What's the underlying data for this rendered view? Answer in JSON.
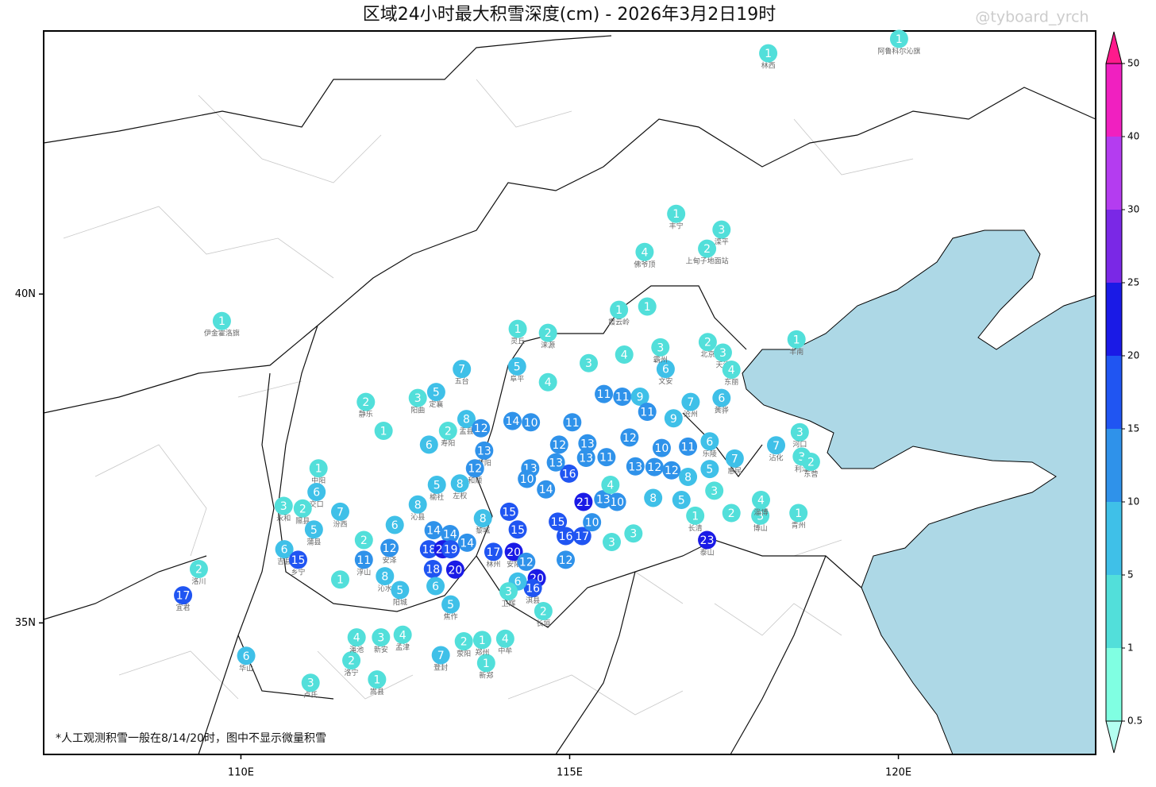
{
  "title": "区域24小时最大积雪深度(cm) - 2026年3月2日19时",
  "watermark": "@tyboard_yrch",
  "note": "*人工观测积雪一般在8/14/20时，图中不显示微量积雪",
  "map": {
    "xlim": [
      107,
      123
    ],
    "ylim": [
      33,
      44
    ],
    "xticks": [
      {
        "value": 110,
        "label": "110E"
      },
      {
        "value": 115,
        "label": "115E"
      },
      {
        "value": 120,
        "label": "120E"
      }
    ],
    "yticks": [
      {
        "value": 35,
        "label": "35N"
      },
      {
        "value": 40,
        "label": "40N"
      }
    ],
    "colorbar": {
      "levels": [
        0.5,
        1,
        5,
        10,
        15,
        20,
        25,
        30,
        40,
        50
      ],
      "colors": [
        "#b4fff0",
        "#80ffe2",
        "#52dfda",
        "#3fc0e8",
        "#2f92ea",
        "#2055f2",
        "#1a1ae6",
        "#7a28e6",
        "#b43cf0",
        "#f020c0",
        "#ff1a8c"
      ]
    },
    "stations": [
      {
        "lon": 118.02,
        "lat": 43.66,
        "value": 1,
        "name": "林西"
      },
      {
        "lon": 120.01,
        "lat": 43.88,
        "value": 1,
        "name": "阿鲁科尔沁旗"
      },
      {
        "lon": 109.71,
        "lat": 39.59,
        "value": 1,
        "name": "伊金霍洛旗"
      },
      {
        "lon": 116.62,
        "lat": 41.22,
        "value": 1,
        "name": "丰宁"
      },
      {
        "lon": 117.31,
        "lat": 40.98,
        "value": 3,
        "name": "滦平"
      },
      {
        "lon": 117.09,
        "lat": 40.69,
        "value": 2,
        "name": "上甸子地面站"
      },
      {
        "lon": 116.14,
        "lat": 40.64,
        "value": 4,
        "name": "佛爷顶"
      },
      {
        "lon": 115.75,
        "lat": 39.76,
        "value": 1,
        "name": "霞云岭"
      },
      {
        "lon": 116.18,
        "lat": 39.81,
        "value": 1
      },
      {
        "lon": 114.21,
        "lat": 39.47,
        "value": 1,
        "name": "灵丘"
      },
      {
        "lon": 114.67,
        "lat": 39.41,
        "value": 2,
        "name": "涞源"
      },
      {
        "lon": 113.36,
        "lat": 38.86,
        "value": 7,
        "name": "五台"
      },
      {
        "lon": 114.2,
        "lat": 38.9,
        "value": 5,
        "name": "阜平"
      },
      {
        "lon": 111.9,
        "lat": 38.36,
        "value": 2,
        "name": "静乐"
      },
      {
        "lon": 112.97,
        "lat": 38.51,
        "value": 5,
        "name": "定襄"
      },
      {
        "lon": 112.69,
        "lat": 38.42,
        "value": 3,
        "name": "阳曲"
      },
      {
        "lon": 113.43,
        "lat": 38.1,
        "value": 8,
        "name": "盂县"
      },
      {
        "lon": 113.15,
        "lat": 37.92,
        "value": 2,
        "name": "寿阳"
      },
      {
        "lon": 112.17,
        "lat": 37.92,
        "value": 1
      },
      {
        "lon": 113.65,
        "lat": 37.96,
        "value": 12
      },
      {
        "lon": 113.7,
        "lat": 37.62,
        "value": 13,
        "name": "昔阳"
      },
      {
        "lon": 113.56,
        "lat": 37.35,
        "value": 12,
        "name": "和顺"
      },
      {
        "lon": 113.33,
        "lat": 37.12,
        "value": 8,
        "name": "左权"
      },
      {
        "lon": 112.98,
        "lat": 37.1,
        "value": 5,
        "name": "榆社"
      },
      {
        "lon": 112.69,
        "lat": 36.8,
        "value": 8,
        "name": "沁县"
      },
      {
        "lon": 111.18,
        "lat": 37.35,
        "value": 1,
        "name": "中阳"
      },
      {
        "lon": 111.15,
        "lat": 36.99,
        "value": 6,
        "name": "交口"
      },
      {
        "lon": 110.65,
        "lat": 36.78,
        "value": 3,
        "name": "永和"
      },
      {
        "lon": 110.94,
        "lat": 36.74,
        "value": 2,
        "name": "隰县"
      },
      {
        "lon": 111.11,
        "lat": 36.42,
        "value": 5,
        "name": "蒲县"
      },
      {
        "lon": 111.51,
        "lat": 36.69,
        "value": 7,
        "name": "汾西"
      },
      {
        "lon": 110.66,
        "lat": 36.12,
        "value": 6,
        "name": "吉县"
      },
      {
        "lon": 110.87,
        "lat": 35.96,
        "value": 15,
        "name": "乡宁"
      },
      {
        "lon": 111.87,
        "lat": 36.26,
        "value": 2
      },
      {
        "lon": 111.87,
        "lat": 35.96,
        "value": 11,
        "name": "浮山"
      },
      {
        "lon": 112.26,
        "lat": 36.14,
        "value": 12,
        "name": "安泽"
      },
      {
        "lon": 112.34,
        "lat": 36.49,
        "value": 6
      },
      {
        "lon": 112.19,
        "lat": 35.71,
        "value": 8,
        "name": "沁水"
      },
      {
        "lon": 112.42,
        "lat": 35.5,
        "value": 5,
        "name": "阳城"
      },
      {
        "lon": 113.68,
        "lat": 36.59,
        "value": 8,
        "name": "黎城"
      },
      {
        "lon": 112.93,
        "lat": 36.41,
        "value": 14
      },
      {
        "lon": 113.18,
        "lat": 36.35,
        "value": 14
      },
      {
        "lon": 112.86,
        "lat": 36.12,
        "value": 18
      },
      {
        "lon": 113.07,
        "lat": 36.12,
        "value": 22
      },
      {
        "lon": 113.19,
        "lat": 36.12,
        "value": 19
      },
      {
        "lon": 113.44,
        "lat": 36.22,
        "value": 14
      },
      {
        "lon": 112.92,
        "lat": 35.82,
        "value": 18
      },
      {
        "lon": 113.26,
        "lat": 35.81,
        "value": 20
      },
      {
        "lon": 112.96,
        "lat": 35.56,
        "value": 6
      },
      {
        "lon": 113.84,
        "lat": 36.08,
        "value": 17,
        "name": "林州"
      },
      {
        "lon": 114.15,
        "lat": 36.08,
        "value": 20,
        "name": "安阳"
      },
      {
        "lon": 114.34,
        "lat": 35.93,
        "value": 12
      },
      {
        "lon": 114.5,
        "lat": 35.68,
        "value": 20
      },
      {
        "lon": 114.44,
        "lat": 35.53,
        "value": 16,
        "name": "淇县"
      },
      {
        "lon": 114.21,
        "lat": 35.63,
        "value": 6
      },
      {
        "lon": 114.94,
        "lat": 35.96,
        "value": 12
      },
      {
        "lon": 109.12,
        "lat": 35.42,
        "value": 17,
        "name": "宜君"
      },
      {
        "lon": 109.36,
        "lat": 35.82,
        "value": 2,
        "name": "洛川"
      },
      {
        "lon": 110.08,
        "lat": 34.5,
        "value": 6,
        "name": "华山"
      },
      {
        "lon": 111.06,
        "lat": 34.09,
        "value": 3,
        "name": "卢氏"
      },
      {
        "lon": 112.07,
        "lat": 34.14,
        "value": 1,
        "name": "嵩县"
      },
      {
        "lon": 111.68,
        "lat": 34.43,
        "value": 2,
        "name": "洛宁"
      },
      {
        "lon": 111.76,
        "lat": 34.78,
        "value": 4,
        "name": "渑池"
      },
      {
        "lon": 112.13,
        "lat": 34.78,
        "value": 3,
        "name": "新安"
      },
      {
        "lon": 112.46,
        "lat": 34.82,
        "value": 4,
        "name": "孟津"
      },
      {
        "lon": 113.04,
        "lat": 34.51,
        "value": 7,
        "name": "登封"
      },
      {
        "lon": 113.73,
        "lat": 34.39,
        "value": 1,
        "name": "新郑"
      },
      {
        "lon": 114.02,
        "lat": 34.76,
        "value": 4,
        "name": "中牟"
      },
      {
        "lon": 113.67,
        "lat": 34.74,
        "value": 1,
        "name": "郑州"
      },
      {
        "lon": 113.39,
        "lat": 34.72,
        "value": 2,
        "name": "荥阳"
      },
      {
        "lon": 113.19,
        "lat": 35.28,
        "value": 5,
        "name": "焦作"
      },
      {
        "lon": 114.07,
        "lat": 35.48,
        "value": 3,
        "name": "卫辉"
      },
      {
        "lon": 114.6,
        "lat": 35.18,
        "value": 2,
        "name": "长垣"
      },
      {
        "lon": 117.1,
        "lat": 39.27,
        "value": 2,
        "name": "北京"
      },
      {
        "lon": 117.33,
        "lat": 39.11,
        "value": 3,
        "name": "天津"
      },
      {
        "lon": 117.46,
        "lat": 38.85,
        "value": 4,
        "name": "东丽"
      },
      {
        "lon": 118.45,
        "lat": 39.31,
        "value": 1,
        "name": "丰南"
      },
      {
        "lon": 116.46,
        "lat": 38.86,
        "value": 6,
        "name": "文安"
      },
      {
        "lon": 116.38,
        "lat": 39.19,
        "value": 3,
        "name": "霸州"
      },
      {
        "lon": 116.84,
        "lat": 38.36,
        "value": 7,
        "name": "沧州"
      },
      {
        "lon": 117.31,
        "lat": 38.42,
        "value": 6,
        "name": "黄骅"
      },
      {
        "lon": 118.14,
        "lat": 37.7,
        "value": 7,
        "name": "沾化"
      },
      {
        "lon": 118.5,
        "lat": 37.9,
        "value": 3,
        "name": "河口"
      },
      {
        "lon": 118.53,
        "lat": 37.53,
        "value": 3,
        "name": "利津"
      },
      {
        "lon": 118.67,
        "lat": 37.45,
        "value": 2,
        "name": "东营"
      },
      {
        "lon": 118.48,
        "lat": 36.67,
        "value": 1,
        "name": "青州"
      },
      {
        "lon": 117.9,
        "lat": 36.63,
        "value": 3,
        "name": "博山"
      },
      {
        "lon": 117.91,
        "lat": 36.87,
        "value": 4,
        "name": "淄博"
      },
      {
        "lon": 117.2,
        "lat": 37.01,
        "value": 3
      },
      {
        "lon": 116.91,
        "lat": 36.63,
        "value": 1,
        "name": "长清"
      },
      {
        "lon": 117.09,
        "lat": 36.26,
        "value": 23,
        "name": "泰山"
      },
      {
        "lon": 117.51,
        "lat": 37.5,
        "value": 7,
        "name": "惠民"
      },
      {
        "lon": 117.13,
        "lat": 37.76,
        "value": 6,
        "name": "乐陵"
      },
      {
        "lon": 114.13,
        "lat": 38.07,
        "value": 14
      },
      {
        "lon": 114.41,
        "lat": 38.05,
        "value": 10
      },
      {
        "lon": 115.04,
        "lat": 38.05,
        "value": 11
      },
      {
        "lon": 115.52,
        "lat": 38.48,
        "value": 11
      },
      {
        "lon": 115.8,
        "lat": 38.44,
        "value": 11
      },
      {
        "lon": 116.07,
        "lat": 38.44,
        "value": 9
      },
      {
        "lon": 116.18,
        "lat": 38.21,
        "value": 11
      },
      {
        "lon": 116.58,
        "lat": 38.11,
        "value": 9
      },
      {
        "lon": 116.8,
        "lat": 37.68,
        "value": 11
      },
      {
        "lon": 116.4,
        "lat": 37.66,
        "value": 10
      },
      {
        "lon": 115.91,
        "lat": 37.82,
        "value": 12
      },
      {
        "lon": 115.25,
        "lat": 37.51,
        "value": 13
      },
      {
        "lon": 115.56,
        "lat": 37.52,
        "value": 11
      },
      {
        "lon": 116.0,
        "lat": 37.38,
        "value": 13
      },
      {
        "lon": 116.29,
        "lat": 37.37,
        "value": 12
      },
      {
        "lon": 116.55,
        "lat": 37.32,
        "value": 12
      },
      {
        "lon": 116.8,
        "lat": 37.22,
        "value": 8
      },
      {
        "lon": 116.27,
        "lat": 36.9,
        "value": 8
      },
      {
        "lon": 115.72,
        "lat": 36.84,
        "value": 10
      },
      {
        "lon": 115.51,
        "lat": 36.88,
        "value": 13
      },
      {
        "lon": 115.21,
        "lat": 36.84,
        "value": 21
      },
      {
        "lon": 114.99,
        "lat": 37.27,
        "value": 16
      },
      {
        "lon": 114.64,
        "lat": 37.03,
        "value": 14
      },
      {
        "lon": 114.4,
        "lat": 37.35,
        "value": 13
      },
      {
        "lon": 114.79,
        "lat": 37.44,
        "value": 13
      },
      {
        "lon": 114.84,
        "lat": 37.71,
        "value": 12
      },
      {
        "lon": 114.94,
        "lat": 36.32,
        "value": 16
      },
      {
        "lon": 115.19,
        "lat": 36.32,
        "value": 17
      },
      {
        "lon": 115.34,
        "lat": 36.53,
        "value": 10
      },
      {
        "lon": 114.08,
        "lat": 36.69,
        "value": 15
      },
      {
        "lon": 114.21,
        "lat": 36.42,
        "value": 15
      },
      {
        "lon": 114.82,
        "lat": 36.54,
        "value": 15
      },
      {
        "lon": 115.27,
        "lat": 37.73,
        "value": 13
      },
      {
        "lon": 114.35,
        "lat": 37.19,
        "value": 10
      },
      {
        "lon": 115.62,
        "lat": 37.1,
        "value": 4
      },
      {
        "lon": 115.97,
        "lat": 36.36,
        "value": 3
      },
      {
        "lon": 115.64,
        "lat": 36.23,
        "value": 3
      },
      {
        "lon": 114.67,
        "lat": 38.66,
        "value": 4
      },
      {
        "lon": 115.29,
        "lat": 38.95,
        "value": 3
      },
      {
        "lon": 115.83,
        "lat": 39.08,
        "value": 4
      },
      {
        "lon": 112.86,
        "lat": 37.71,
        "value": 6
      },
      {
        "lon": 117.46,
        "lat": 36.67,
        "value": 2
      },
      {
        "lon": 117.13,
        "lat": 37.34,
        "value": 5
      },
      {
        "lon": 116.7,
        "lat": 36.87,
        "value": 5
      },
      {
        "lon": 111.51,
        "lat": 35.66,
        "value": 1
      }
    ]
  }
}
